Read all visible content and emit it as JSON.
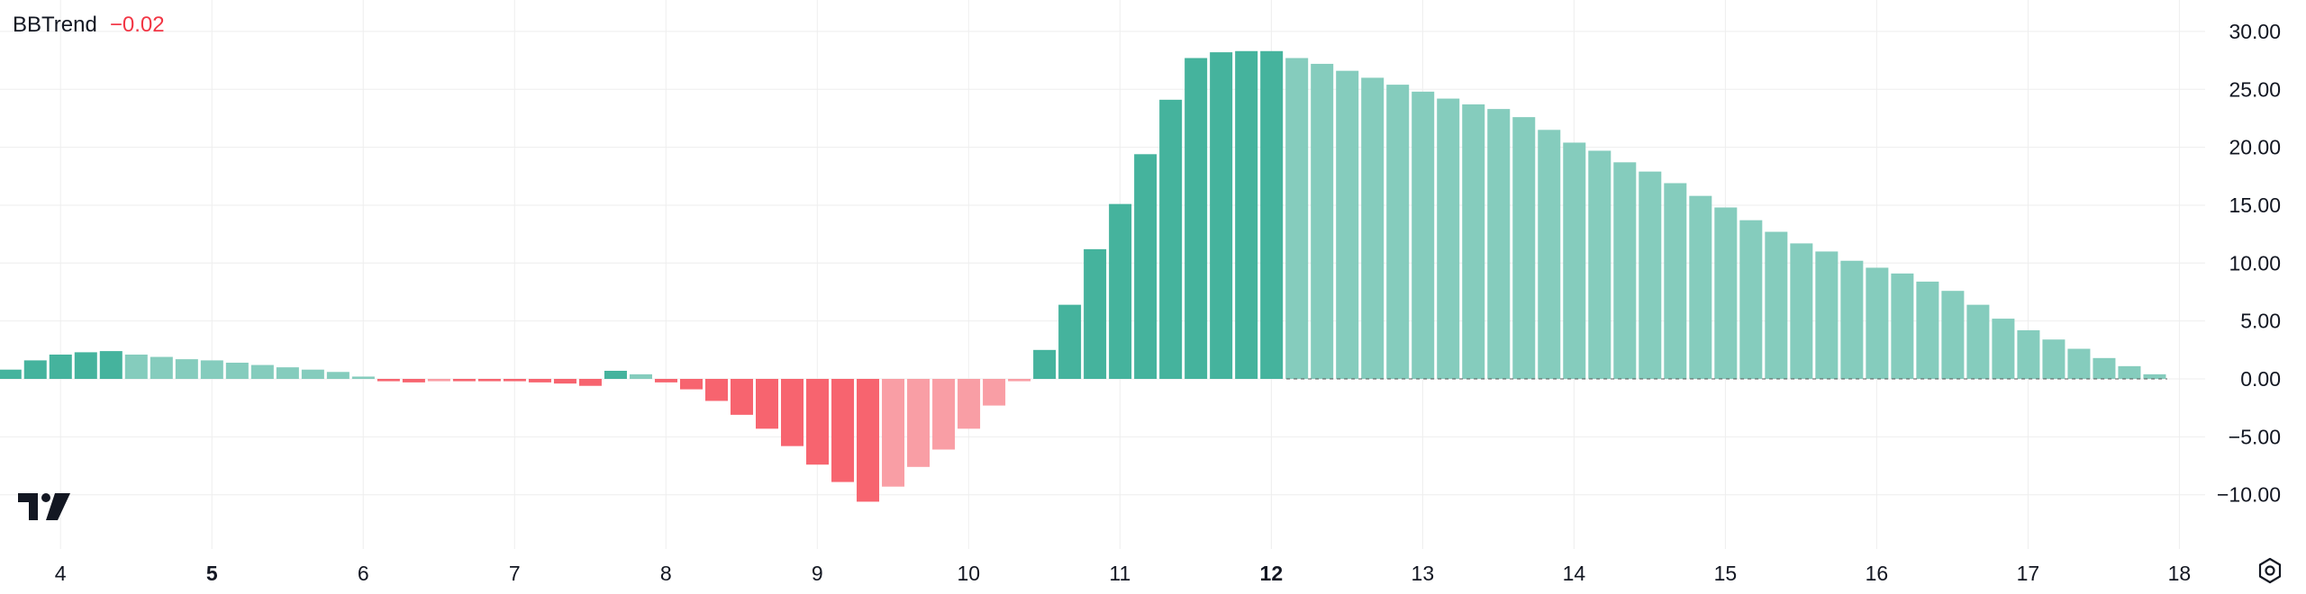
{
  "indicator": {
    "name": "BBTrend",
    "value": "−0.02"
  },
  "colors": {
    "pos_strong": "#45b39d",
    "pos_weak": "#85ccbd",
    "neg_strong": "#f7646f",
    "neg_weak": "#f99ea5",
    "grid": "#eeeeee",
    "text": "#131722",
    "value_red": "#f23645"
  },
  "icons": {
    "logo": "tradingview-logo-icon",
    "settings": "settings-gear-icon"
  },
  "chart_data": {
    "type": "bar",
    "title": "BBTrend",
    "x_ticks": [
      {
        "label": "4",
        "x": 4,
        "bold": false
      },
      {
        "label": "5",
        "x": 5,
        "bold": true
      },
      {
        "label": "6",
        "x": 6,
        "bold": false
      },
      {
        "label": "7",
        "x": 7,
        "bold": false
      },
      {
        "label": "8",
        "x": 8,
        "bold": false
      },
      {
        "label": "9",
        "x": 9,
        "bold": false
      },
      {
        "label": "10",
        "x": 10,
        "bold": false
      },
      {
        "label": "11",
        "x": 11,
        "bold": false
      },
      {
        "label": "12",
        "x": 12,
        "bold": true
      },
      {
        "label": "13",
        "x": 13,
        "bold": false
      },
      {
        "label": "14",
        "x": 14,
        "bold": false
      },
      {
        "label": "15",
        "x": 15,
        "bold": false
      },
      {
        "label": "16",
        "x": 16,
        "bold": false
      },
      {
        "label": "17",
        "x": 17,
        "bold": false
      },
      {
        "label": "18",
        "x": 18,
        "bold": false
      }
    ],
    "y_ticks": [
      "30.00",
      "25.00",
      "20.00",
      "15.00",
      "10.00",
      "5.00",
      "0.00",
      "−5.00",
      "−10.00"
    ],
    "ylim": [
      -12.8,
      31.5
    ],
    "xlim": [
      3.6,
      18.17
    ],
    "bar_start_x": 3.667,
    "bar_step": 0.1667,
    "values": [
      0.8,
      1.6,
      2.1,
      2.3,
      2.4,
      2.1,
      1.9,
      1.7,
      1.6,
      1.4,
      1.2,
      1.0,
      0.8,
      0.6,
      0.2,
      -0.2,
      -0.3,
      -0.2,
      -0.2,
      -0.2,
      -0.2,
      -0.3,
      -0.4,
      -0.6,
      0.7,
      0.4,
      -0.3,
      -0.9,
      -1.9,
      -3.1,
      -4.3,
      -5.8,
      -7.4,
      -8.9,
      -10.6,
      -9.3,
      -7.6,
      -6.1,
      -4.3,
      -2.3,
      -0.2,
      2.5,
      6.4,
      11.2,
      15.1,
      19.4,
      24.1,
      27.7,
      28.2,
      28.3,
      28.3,
      27.7,
      27.2,
      26.6,
      26.0,
      25.4,
      24.8,
      24.2,
      23.7,
      23.3,
      22.6,
      21.5,
      20.4,
      19.7,
      18.7,
      17.9,
      16.9,
      15.8,
      14.8,
      13.7,
      12.7,
      11.7,
      11.0,
      10.2,
      9.6,
      9.1,
      8.4,
      7.6,
      6.4,
      5.2,
      4.2,
      3.4,
      2.6,
      1.8,
      1.1,
      0.4
    ],
    "grid": true
  }
}
